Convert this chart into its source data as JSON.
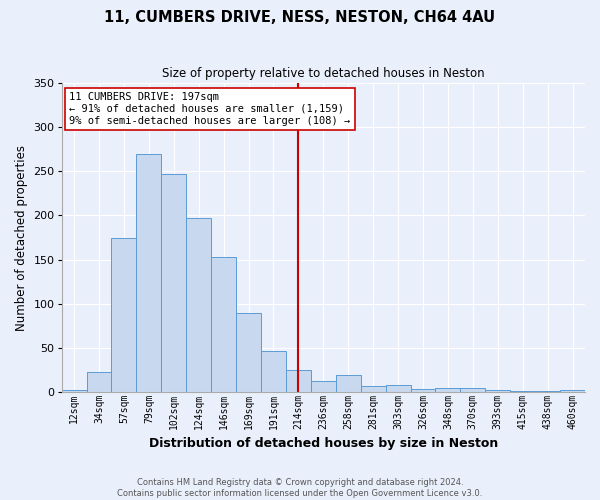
{
  "title1": "11, CUMBERS DRIVE, NESS, NESTON, CH64 4AU",
  "title2": "Size of property relative to detached houses in Neston",
  "xlabel": "Distribution of detached houses by size in Neston",
  "ylabel": "Number of detached properties",
  "categories": [
    "12sqm",
    "34sqm",
    "57sqm",
    "79sqm",
    "102sqm",
    "124sqm",
    "146sqm",
    "169sqm",
    "191sqm",
    "214sqm",
    "236sqm",
    "258sqm",
    "281sqm",
    "303sqm",
    "326sqm",
    "348sqm",
    "370sqm",
    "393sqm",
    "415sqm",
    "438sqm",
    "460sqm"
  ],
  "values": [
    2,
    23,
    175,
    270,
    247,
    197,
    153,
    89,
    46,
    25,
    13,
    19,
    7,
    8,
    3,
    5,
    5,
    2,
    1,
    1,
    2
  ],
  "bar_color": "#c8d9ef",
  "bar_edge_color": "#5b9bd5",
  "vline_x": 9.0,
  "vline_color": "#cc0000",
  "ylim": [
    0,
    350
  ],
  "yticks": [
    0,
    50,
    100,
    150,
    200,
    250,
    300,
    350
  ],
  "annotation_title": "11 CUMBERS DRIVE: 197sqm",
  "annotation_line1": "← 91% of detached houses are smaller (1,159)",
  "annotation_line2": "9% of semi-detached houses are larger (108) →",
  "footer1": "Contains HM Land Registry data © Crown copyright and database right 2024.",
  "footer2": "Contains public sector information licensed under the Open Government Licence v3.0.",
  "bg_color": "#eaf0fb",
  "grid_color": "#ffffff"
}
